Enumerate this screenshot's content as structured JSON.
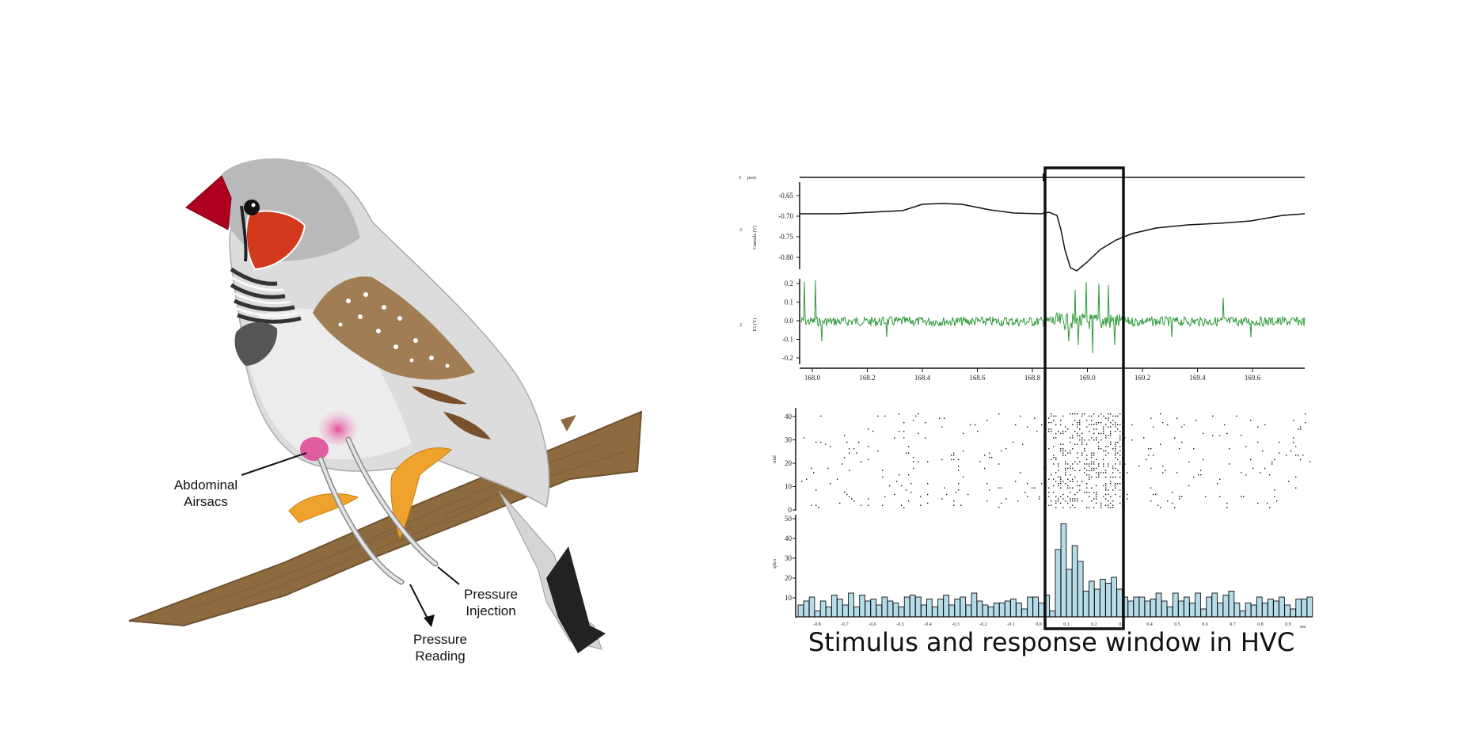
{
  "labels": {
    "airsacs_line1": "Abdominal",
    "airsacs_line2": "Airsacs",
    "injection_line1": "Pressure",
    "injection_line2": "Injection",
    "reading_line1": "Pressure",
    "reading_line2": "Reading"
  },
  "caption": "Stimulus and response window in HVC",
  "panels": {
    "stim_channel_label": "psoo",
    "pressure_yticks": [
      "-0.65",
      "-0.70",
      "-0.75",
      "-0.80"
    ],
    "pressure_ylabel": "Cannula\n(V)",
    "neural_yticks": [
      "0.2",
      "0.1",
      "0.0",
      "-0.1",
      "-0.2"
    ],
    "neural_ylabel": "E1\n(V)",
    "time_ticks": [
      "168.0",
      "168.2",
      "168.4",
      "168.6",
      "168.8",
      "169.0",
      "169.2",
      "169.4",
      "169.6"
    ],
    "raster_yticks": [
      "40",
      "30",
      "20",
      "10",
      "0"
    ],
    "hist_yticks": [
      "50",
      "40",
      "30",
      "20",
      "10"
    ],
    "hist_xticks": [
      "-0.8",
      "-0.7",
      "-0.6",
      "-0.5",
      "-0.4",
      "-0.3",
      "-0.2",
      "-0.1",
      "0.0",
      "0.1",
      "0.2",
      "0.3",
      "0.4",
      "0.5",
      "0.6",
      "0.7",
      "0.8",
      "0.9"
    ],
    "hist_xunit": "sec"
  },
  "chart_data": {
    "type": "bar",
    "title": "",
    "xlabel": "sec",
    "ylabel": "",
    "ylim": [
      0,
      50
    ],
    "bin_start": -0.9,
    "bin_width": 0.02,
    "values": [
      6,
      8,
      10,
      3,
      8,
      5,
      11,
      9,
      6,
      12,
      5,
      11,
      8,
      9,
      6,
      10,
      8,
      7,
      5,
      10,
      11,
      10,
      6,
      9,
      5,
      9,
      11,
      6,
      9,
      10,
      6,
      12,
      8,
      6,
      5,
      7,
      7,
      8,
      9,
      7,
      4,
      10,
      10,
      7,
      11,
      3,
      34,
      47,
      24,
      36,
      28,
      13,
      18,
      14,
      19,
      17,
      20,
      14,
      10,
      8,
      10,
      10,
      8,
      9,
      12,
      8,
      5,
      12,
      8,
      10,
      7,
      12,
      4,
      10,
      12,
      7,
      11,
      13,
      7,
      3,
      7,
      6,
      10,
      7,
      9,
      8,
      10,
      6,
      4,
      9,
      9,
      10
    ]
  },
  "colors": {
    "beak": "#b0001f",
    "cheek": "#d3391c",
    "wing": "#a07d52",
    "branch": "#8e6b3f",
    "feet": "#f0a32c",
    "airsac": "#e04d98",
    "trace_neural": "#2f9a3a",
    "hist_bar": "#b5dce8"
  }
}
